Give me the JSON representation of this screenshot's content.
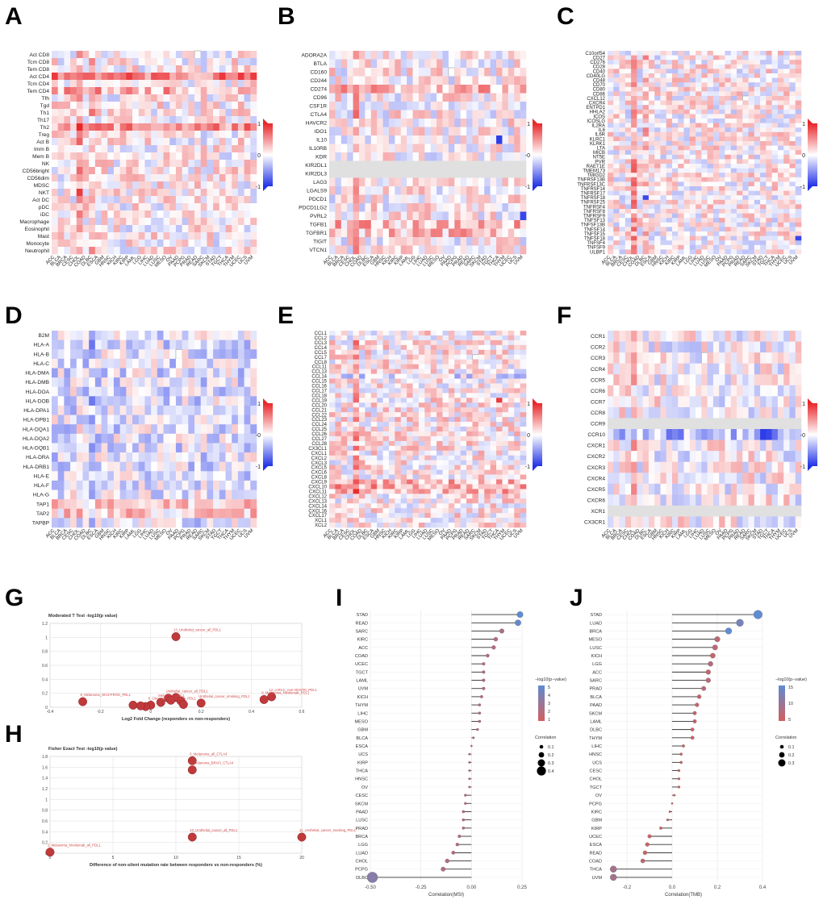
{
  "panel_letters": [
    "A",
    "B",
    "C",
    "D",
    "E",
    "F",
    "G",
    "H",
    "I",
    "J"
  ],
  "colors": {
    "pos": "#e8262a",
    "neg": "#2233e6",
    "mid": "#ffffff",
    "na": "#e0e0e0",
    "point_g": "#c0393b",
    "grid": "#dcdcdc"
  },
  "chart_data": [
    {
      "id": "A",
      "type": "heatmap",
      "rows": [
        "Act CD8",
        "Tcm CD8",
        "Tem CD8",
        "Act CD4",
        "Tcm CD4",
        "Tem CD4",
        "Tfh",
        "Tgd",
        "Th1",
        "Th17",
        "Th2",
        "Treg",
        "Act B",
        "Imm B",
        "Mem B",
        "NK",
        "CD56bright",
        "CD56dim",
        "MDSC",
        "NKT",
        "Act DC",
        "pDC",
        "iDC",
        "Macrophage",
        "Eosinophil",
        "Mast",
        "Monocyte",
        "Neutrophil"
      ],
      "cols": [
        "ACC",
        "BLCA",
        "BRCA",
        "CESC",
        "CHOL",
        "COAD",
        "DLBC",
        "ESCA",
        "GBM",
        "HNSC",
        "KICH",
        "KIRC",
        "KIRP",
        "LAML",
        "LGG",
        "LIHC",
        "LUAD",
        "LUSC",
        "MESO",
        "OV",
        "PAAD",
        "PCPG",
        "PRAD",
        "READ",
        "SARC",
        "SKCM",
        "STAD",
        "TGCT",
        "THCA",
        "THYM",
        "UCEC",
        "UCS",
        "UVM"
      ],
      "legend": [
        "1",
        "0",
        "-1"
      ],
      "seed": 11,
      "bias": 0.05,
      "row_bias": {
        "Act CD4": 0.55,
        "Th2": 0.45,
        "Tem CD4": 0.3
      },
      "col_bias": {
        "CHOL": 0.35,
        "DLBC": 0.25
      },
      "hot": [
        {
          "r": "NKT",
          "c": "CHOL",
          "v": 0.9
        }
      ],
      "na": [
        {
          "r": "Act CD8",
          "c": "READ"
        }
      ]
    },
    {
      "id": "B",
      "type": "heatmap",
      "rows": [
        "ADORA2A",
        "BTLA",
        "CD160",
        "CD244",
        "CD274",
        "CD96",
        "CSF1R",
        "CTLA4",
        "HAVCR2",
        "IDO1",
        "IL10",
        "IL10RB",
        "KDR",
        "KIR2DL1",
        "KIR2DL3",
        "LAG3",
        "LGALS9",
        "PDCD1",
        "PDCD1LG2",
        "PVRL2",
        "TGFB1",
        "TGFBR1",
        "TIGIT",
        "VTCN1"
      ],
      "cols": [
        "ACC",
        "BLCA",
        "BRCA",
        "CESC",
        "CHOL",
        "COAD",
        "DLBC",
        "ESCA",
        "GBM",
        "HNSC",
        "KICH",
        "KIRC",
        "KIRP",
        "LAML",
        "LGG",
        "LIHC",
        "LUAD",
        "LUSC",
        "MESO",
        "OV",
        "PAAD",
        "PCPG",
        "PRAD",
        "READ",
        "SARC",
        "SKCM",
        "STAD",
        "TGCT",
        "THCA",
        "THYM",
        "UCEC",
        "UCS",
        "UVM"
      ],
      "legend": [
        "1",
        "-0",
        "-1"
      ],
      "seed": 23,
      "bias": 0.05,
      "row_bias": {
        "CD274": 0.3,
        "TGFB1": 0.25,
        "TGFBR1": 0.25,
        "KIR2DL1": -0.02,
        "KIR2DL3": -0.02
      },
      "col_bias": {
        "CHOL": 0.3
      },
      "hot": [
        {
          "r": "IL10",
          "c": "THCA",
          "v": -0.95
        },
        {
          "r": "PVRL2",
          "c": "UVM",
          "v": -0.9
        }
      ],
      "na": [
        {
          "r": "CD160",
          "c": "PAAD"
        }
      ]
    },
    {
      "id": "C",
      "type": "heatmap",
      "rows": [
        "C10orf54",
        "CD27",
        "CD276",
        "CD28",
        "CD40",
        "CD40LG",
        "CD48",
        "CD70",
        "CD80",
        "CD86",
        "CXCL12",
        "CXCR4",
        "ENTPD1",
        "HHLA2",
        "ICOS",
        "ICOSLG",
        "IL2RA",
        "IL6",
        "IL6R",
        "KLRC1",
        "KLRK1",
        "LTA",
        "MICB",
        "NT5E",
        "PVR",
        "RAET1E",
        "TMEM173",
        "TMIGD2",
        "TNFRSF13B",
        "TNFRSF13C",
        "TNFRSF14",
        "TNFRSF17",
        "TNFRSF18",
        "TNFRSF25",
        "TNFRSF4",
        "TNFRSF8",
        "TNFRSF9",
        "TNFSF13",
        "TNFSF13B",
        "TNFSF14",
        "TNFSF15",
        "TNFSF18",
        "TNFSF4",
        "TNFSF9",
        "ULBP1"
      ],
      "cols": [
        "ACC",
        "BLCA",
        "BRCA",
        "CESC",
        "CHOL",
        "COAD",
        "DLBC",
        "ESCA",
        "GBM",
        "HNSC",
        "KICH",
        "KIRC",
        "KIRP",
        "LAML",
        "LGG",
        "LIHC",
        "LUAD",
        "LUSC",
        "MESO",
        "OV",
        "PAAD",
        "PCPG",
        "PRAD",
        "READ",
        "SARC",
        "SKCM",
        "STAD",
        "TGCT",
        "THCA",
        "THYM",
        "UCEC",
        "UCS",
        "UVM"
      ],
      "legend": [
        "1",
        "0",
        "-1"
      ],
      "seed": 37,
      "bias": 0.05,
      "row_bias": {},
      "col_bias": {
        "CHOL": 0.35,
        "DLBC": 0.2
      },
      "hot": [
        {
          "r": "TNFRSF18",
          "c": "DLBC",
          "v": -0.9
        },
        {
          "r": "TNFSF18",
          "c": "UVM",
          "v": -0.9
        }
      ],
      "na": [
        {
          "r": "CXCL12",
          "c": "READ"
        }
      ]
    },
    {
      "id": "D",
      "type": "heatmap",
      "rows": [
        "B2M",
        "HLA-A",
        "HLA-B",
        "HLA-C",
        "HLA-DMA",
        "HLA-DMB",
        "HLA-DOA",
        "HLA-DOB",
        "HLA-DPA1",
        "HLA-DPB1",
        "HLA-DQA1",
        "HLA-DQA2",
        "HLA-DQB1",
        "HLA-DRA",
        "HLA-DRB1",
        "HLA-E",
        "HLA-F",
        "HLA-G",
        "TAP1",
        "TAP2",
        "TAPBP"
      ],
      "cols": [
        "ACC",
        "BLCA",
        "BRCA",
        "CESC",
        "CHOL",
        "COAD",
        "DLBC",
        "ESCA",
        "GBM",
        "HNSC",
        "KICH",
        "KIRC",
        "KIRP",
        "LAML",
        "LGG",
        "LIHC",
        "LUAD",
        "LUSC",
        "MESO",
        "OV",
        "PAAD",
        "PCPG",
        "PRAD",
        "READ",
        "SARC",
        "SKCM",
        "STAD",
        "TGCT",
        "THCA",
        "THYM",
        "UCEC",
        "UCS",
        "UVM"
      ],
      "legend": [
        "1",
        "-0",
        "-1"
      ],
      "seed": 51,
      "bias": -0.12,
      "row_bias": {
        "TAP1": 0.35,
        "TAP2": 0.3,
        "HLA-G": 0.05
      },
      "col_bias": {
        "DLBC": -0.2,
        "CHOL": 0.1
      },
      "hot": [],
      "na": [
        {
          "r": "HLA-B",
          "c": "PAAD"
        }
      ]
    },
    {
      "id": "E",
      "type": "heatmap",
      "rows": [
        "CCL1",
        "CCL2",
        "CCL3",
        "CCL4",
        "CCL5",
        "CCL7",
        "CCL8",
        "CCL11",
        "CCL13",
        "CCL14",
        "CCL15",
        "CCL16",
        "CCL17",
        "CCL18",
        "CCL19",
        "CCL20",
        "CCL21",
        "CCL22",
        "CCL23",
        "CCL24",
        "CCL25",
        "CCL26",
        "CCL27",
        "CCL28",
        "CX3CL1",
        "CXCL1",
        "CXCL2",
        "CXCL3",
        "CXCL5",
        "CXCL6",
        "CXCL8",
        "CXCL9",
        "CXCL10",
        "CXCL11",
        "CXCL12",
        "CXCL13",
        "CXCL14",
        "CXCL16",
        "CXCL17",
        "XCL1",
        "XCL2"
      ],
      "cols": [
        "ACC",
        "BLCA",
        "BRCA",
        "CESC",
        "CHOL",
        "COAD",
        "DLBC",
        "ESCA",
        "GBM",
        "HNSC",
        "KICH",
        "KIRC",
        "KIRP",
        "LAML",
        "LGG",
        "LIHC",
        "LUAD",
        "LUSC",
        "MESO",
        "OV",
        "PAAD",
        "PCPG",
        "PRAD",
        "READ",
        "SARC",
        "SKCM",
        "STAD",
        "TGCT",
        "THCA",
        "THYM",
        "UCEC",
        "UCS",
        "UVM"
      ],
      "legend": [
        "1",
        "0",
        "-1"
      ],
      "seed": 67,
      "bias": 0.08,
      "row_bias": {
        "CXCL9": 0.25,
        "CXCL10": 0.3,
        "CXCL11": 0.25,
        "CCL14": -0.2
      },
      "col_bias": {
        "CHOL": 0.3
      },
      "hot": [
        {
          "r": "CCL19",
          "c": "THCA",
          "v": 0.9
        }
      ],
      "na": [
        {
          "r": "CCL7",
          "c": "SARC"
        }
      ]
    },
    {
      "id": "F",
      "type": "heatmap",
      "rows": [
        "CCR1",
        "CCR2",
        "CCR3",
        "CCR4",
        "CCR5",
        "CCR6",
        "CCR7",
        "CCR8",
        "CCR9",
        "CCR10",
        "CXCR1",
        "CXCR2",
        "CXCR3",
        "CXCR4",
        "CXCR5",
        "CXCR6",
        "XCR1",
        "CX3CR1"
      ],
      "cols": [
        "ACC",
        "BLCA",
        "BRCA",
        "CESC",
        "CHOL",
        "COAD",
        "DLBC",
        "ESCA",
        "GBM",
        "HNSC",
        "KICH",
        "KIRC",
        "KIRP",
        "LAML",
        "LGG",
        "LIHC",
        "LUAD",
        "LUSC",
        "MESO",
        "OV",
        "PAAD",
        "PCPG",
        "PRAD",
        "READ",
        "SARC",
        "SKCM",
        "STAD",
        "TGCT",
        "THCA",
        "THYM",
        "UCEC",
        "UCS",
        "UVM"
      ],
      "legend": [
        "1",
        "-0",
        "-1"
      ],
      "seed": 83,
      "bias": 0.02,
      "row_bias": {
        "CCR10": -0.35,
        "CCR9": -0.02,
        "XCR1": -0.02
      },
      "col_bias": {
        "CHOL": 0.25
      },
      "hot": [
        {
          "r": "CCR10",
          "c": "STAD",
          "v": -0.95
        },
        {
          "r": "CCR10",
          "c": "TGCT",
          "v": -0.9
        }
      ],
      "na": [
        {
          "r": "CCR3",
          "c": "LUAD"
        }
      ]
    },
    {
      "id": "G",
      "type": "scatter",
      "title": "Moderated T Test -log10(p value)",
      "xlabel": "Log2 Fold Change (responders vs non-responders)",
      "xlim": [
        -0.4,
        0.6
      ],
      "ylim": [
        0,
        1.2
      ],
      "xticks": [
        "-0.4",
        "-0.2",
        "0",
        "0.2",
        "0.4",
        "0.6"
      ],
      "yticks": [
        "0",
        "0.2",
        "0.4",
        "0.6",
        "0.8",
        "1",
        "1.2"
      ],
      "points": [
        {
          "x": 0.1,
          "y": 1.01,
          "label": "13_Urothelial_cancer_all_PDL1"
        },
        {
          "x": -0.27,
          "y": 0.08,
          "label": "8_Melanoma_NIV3-PROG_PDL1"
        },
        {
          "x": 0.48,
          "y": 0.15,
          "label": "12_ccRCC_non-VEGFRi_PDL1"
        },
        {
          "x": 0.45,
          "y": 0.11,
          "label": "9_Melanoma_Nivolumab_PDL1"
        },
        {
          "x": 0.07,
          "y": 0.13,
          "label": "Urothelial_cancer_all_PDL1"
        },
        {
          "x": 0.2,
          "y": 0.06,
          "label": "Urothelial_cancer_smoking_PDL1"
        },
        {
          "x": 0.1,
          "y": 0.14,
          "label": ""
        },
        {
          "x": 0.08,
          "y": 0.1,
          "label": ""
        },
        {
          "x": 0.12,
          "y": 0.09,
          "label": ""
        },
        {
          "x": 0.04,
          "y": 0.07,
          "label": "Melanoma_PDL1"
        },
        {
          "x": 0.0,
          "y": 0.03,
          "label": "6_Oncogene_Nivolumab_PDL1"
        },
        {
          "x": -0.07,
          "y": 0.03,
          "label": ""
        },
        {
          "x": -0.02,
          "y": 0.01,
          "label": ""
        },
        {
          "x": -0.04,
          "y": 0.02,
          "label": ""
        },
        {
          "x": 0.13,
          "y": 0.04,
          "label": ""
        }
      ]
    },
    {
      "id": "H",
      "type": "scatter",
      "title": "Fisher Exact Test -log10(p value)",
      "xlabel": "Difference of non-silent mutation rate between responders vs non-responders (%)",
      "xlim": [
        0,
        20
      ],
      "ylim": [
        0,
        1.8
      ],
      "xticks": [
        "0",
        "5",
        "10",
        "15",
        "20"
      ],
      "yticks": [
        "0",
        "0.2",
        "0.4",
        "0.6",
        "0.8",
        "1",
        "1.2",
        "1.4",
        "1.6",
        "1.8"
      ],
      "points": [
        {
          "x": 11.3,
          "y": 1.72,
          "label": "6_Melanoma_all_CTLA4"
        },
        {
          "x": 11.3,
          "y": 1.55,
          "label": "6_Melanoma_BRAFi_CTLA4"
        },
        {
          "x": 11.3,
          "y": 0.3,
          "label": "10_Urothelial_cancer_all_PDL1"
        },
        {
          "x": 20,
          "y": 0.3,
          "label": "11_Urothelial_cancer_smoking_PDL1"
        },
        {
          "x": 0,
          "y": 0.02,
          "label": "2_Melanoma_Nivolumab_all_PDL1"
        }
      ]
    },
    {
      "id": "I",
      "type": "lollipop",
      "xlabel": "Correlation(MSI)",
      "xlim": [
        -0.5,
        0.25
      ],
      "xticks": [
        "-0.50",
        "-0.25",
        "0.00",
        "0.25"
      ],
      "legend_title": "−log10(p−value)",
      "legend_ticks": [
        "5",
        "4",
        "3",
        "2",
        "1"
      ],
      "legend_max": 5,
      "size_title": "Correlation",
      "size_ticks": [
        "0.1",
        "0.2",
        "0.3",
        "0.4"
      ],
      "categories": [
        "STAD",
        "READ",
        "SARC",
        "KIRC",
        "ACC",
        "COAD",
        "UCEC",
        "TGCT",
        "LAML",
        "UVM",
        "KICH",
        "THYM",
        "LIHC",
        "MESO",
        "GBM",
        "BLCA",
        "ESCA",
        "UCS",
        "KIRP",
        "THCA",
        "HNSC",
        "OV",
        "CESC",
        "SKCM",
        "PAAD",
        "LUSC",
        "PRAD",
        "BRCA",
        "LGG",
        "LUAD",
        "CHOL",
        "PCPG",
        "DLBC"
      ],
      "values": [
        0.24,
        0.23,
        0.15,
        0.12,
        0.11,
        0.08,
        0.06,
        0.06,
        0.06,
        0.06,
        0.05,
        0.04,
        0.04,
        0.04,
        0.03,
        0.01,
        0.0,
        -0.01,
        -0.01,
        -0.01,
        -0.01,
        -0.01,
        -0.03,
        -0.03,
        -0.04,
        -0.04,
        -0.04,
        -0.06,
        -0.07,
        -0.09,
        -0.12,
        -0.14,
        -0.49
      ],
      "pvals": [
        5.3,
        4.8,
        1.6,
        1.3,
        1.2,
        1.1,
        1.1,
        1.0,
        1.0,
        1.0,
        1.0,
        1.0,
        1.0,
        1.0,
        1.0,
        0.8,
        0.5,
        0.5,
        0.5,
        0.5,
        0.5,
        0.5,
        0.8,
        0.8,
        0.8,
        0.8,
        0.8,
        1.0,
        1.2,
        1.3,
        1.3,
        1.3,
        3.2
      ]
    },
    {
      "id": "J",
      "type": "lollipop",
      "xlabel": "Correlation(TMB)",
      "xlim": [
        -0.3,
        0.4
      ],
      "xticks": [
        "-0.2",
        "0.0",
        "0.2",
        "0.4"
      ],
      "legend_title": "−log10(p−value)",
      "legend_ticks": [
        "15",
        "10",
        "5"
      ],
      "legend_max": 15,
      "size_title": "Correlation",
      "size_ticks": [
        "0.1",
        "0.2",
        "0.3"
      ],
      "categories": [
        "STAD",
        "LUAD",
        "BRCA",
        "MESO",
        "LUSC",
        "KICH",
        "LGG",
        "ACC",
        "SARC",
        "PRAD",
        "BLCA",
        "PAAD",
        "SKCM",
        "LAML",
        "DLBC",
        "THYM",
        "LIHC",
        "HNSC",
        "UCS",
        "CESC",
        "CHOL",
        "TGCT",
        "OV",
        "PCPG",
        "KIRC",
        "GBM",
        "KIRP",
        "UCEC",
        "ESCA",
        "READ",
        "COAD",
        "THCA",
        "UVM"
      ],
      "values": [
        0.38,
        0.3,
        0.25,
        0.2,
        0.19,
        0.18,
        0.17,
        0.16,
        0.16,
        0.14,
        0.12,
        0.11,
        0.1,
        0.1,
        0.09,
        0.09,
        0.05,
        0.04,
        0.04,
        0.03,
        0.03,
        0.03,
        0.01,
        0.0,
        -0.01,
        -0.02,
        -0.05,
        -0.1,
        -0.11,
        -0.12,
        -0.13,
        -0.26,
        -0.26
      ],
      "pvals": [
        15,
        12,
        15,
        3,
        3,
        2,
        4,
        2,
        3,
        3,
        2,
        1,
        1,
        1,
        1,
        1,
        1,
        1,
        1,
        1,
        1,
        1,
        0.5,
        0.5,
        0.5,
        0.5,
        0.8,
        1,
        1,
        1,
        2,
        6,
        6
      ]
    }
  ]
}
